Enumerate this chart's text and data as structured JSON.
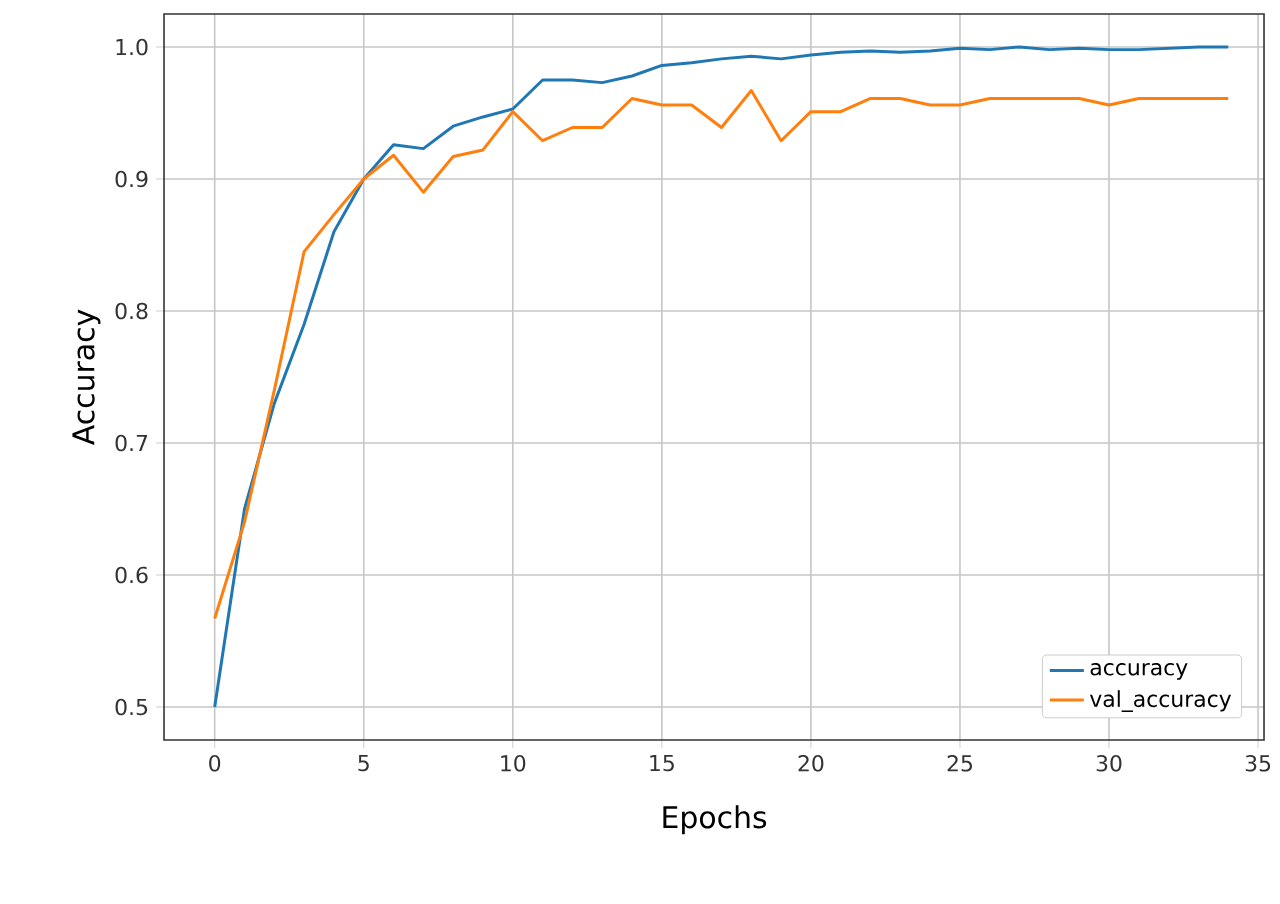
{
  "chart_data": {
    "type": "line",
    "xlabel": "Epochs",
    "ylabel": "Accuracy",
    "x": [
      0,
      1,
      2,
      3,
      4,
      5,
      6,
      7,
      8,
      9,
      10,
      11,
      12,
      13,
      14,
      15,
      16,
      17,
      18,
      19,
      20,
      21,
      22,
      23,
      24,
      25,
      26,
      27,
      28,
      29,
      30,
      31,
      32,
      33,
      34
    ],
    "series": [
      {
        "name": "accuracy",
        "color": "#1f77b4",
        "values": [
          0.5,
          0.65,
          0.73,
          0.79,
          0.86,
          0.9,
          0.926,
          0.923,
          0.94,
          0.947,
          0.953,
          0.975,
          0.975,
          0.973,
          0.978,
          0.986,
          0.988,
          0.991,
          0.993,
          0.991,
          0.994,
          0.996,
          0.997,
          0.996,
          0.997,
          0.999,
          0.998,
          1.0,
          0.998,
          0.999,
          0.998,
          0.998,
          0.999,
          1.0,
          1.0
        ]
      },
      {
        "name": "val_accuracy",
        "color": "#ff7f0e",
        "values": [
          0.567,
          0.64,
          0.74,
          0.845,
          0.873,
          0.9,
          0.918,
          0.89,
          0.917,
          0.922,
          0.951,
          0.929,
          0.939,
          0.939,
          0.961,
          0.956,
          0.956,
          0.939,
          0.967,
          0.929,
          0.951,
          0.951,
          0.961,
          0.961,
          0.956,
          0.956,
          0.961,
          0.961,
          0.961,
          0.961,
          0.956,
          0.961,
          0.961,
          0.961,
          0.961
        ]
      }
    ],
    "xlim": [
      -1.7,
      35.2
    ],
    "ylim": [
      0.475,
      1.025
    ],
    "xticks": [
      0,
      5,
      10,
      15,
      20,
      25,
      30,
      35
    ],
    "yticks": [
      {
        "value": 0.5,
        "label": "0.5"
      },
      {
        "value": 0.6,
        "label": "0.6"
      },
      {
        "value": 0.7,
        "label": "0.7"
      },
      {
        "value": 0.8,
        "label": "0.8"
      },
      {
        "value": 0.9,
        "label": "0.9"
      },
      {
        "value": 1.0,
        "label": "1.0"
      }
    ],
    "grid": true,
    "legend": "bottom right",
    "marker": "none",
    "line_style": "solid"
  }
}
